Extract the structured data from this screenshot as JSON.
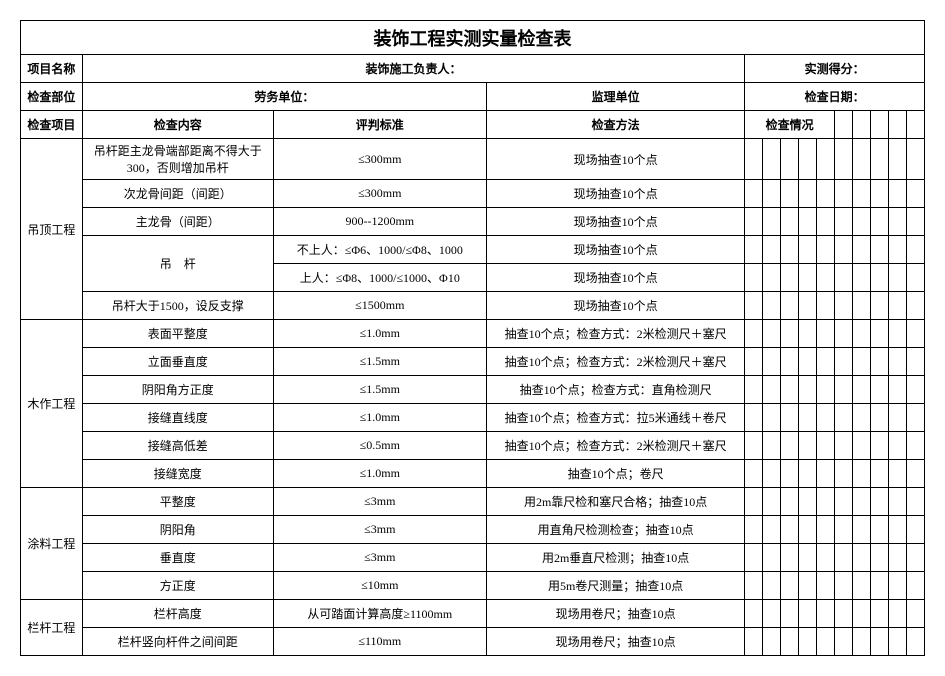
{
  "title": "装饰工程实测实量检查表",
  "meta": {
    "project_name_label": "项目名称",
    "construction_leader_label": "装饰施工负责人：",
    "actual_score_label": "实测得分：",
    "inspection_part_label": "检查部位",
    "labor_unit_label": "劳务单位：",
    "supervision_unit_label": "监理单位",
    "inspection_date_label": "检查日期："
  },
  "headers": {
    "category": "检查项目",
    "content": "检查内容",
    "standard": "评判标准",
    "method": "检查方法",
    "situation": "检查情况"
  },
  "sections": [
    {
      "name": "吊顶工程",
      "rows": [
        {
          "content": "吊杆距主龙骨端部距离不得大于300，否则增加吊杆",
          "content2": "",
          "standard": "≤300mm",
          "method": "现场抽查10个点"
        },
        {
          "content": "次龙骨间距（间距）",
          "content2": "",
          "standard": "≤300mm",
          "method": "现场抽查10个点"
        },
        {
          "content": "主龙骨（间距）",
          "content2": "",
          "standard": "900--1200mm",
          "method": "现场抽查10个点"
        },
        {
          "content": "吊　杆",
          "content2": "",
          "standard": "不上人：≤Φ6、1000/≤Φ8、1000",
          "method": "现场抽查10个点",
          "rowspan": 2,
          "multi_std": [
            "不上人：≤Φ6、1000/≤Φ8、1000",
            "上人：≤Φ8、1000/≤1000、Φ10"
          ],
          "multi_method": [
            "现场抽查10个点",
            "现场抽查10个点"
          ]
        },
        {
          "content": "吊杆大于1500，设反支撑",
          "content2": "",
          "standard": "≤1500mm",
          "method": "现场抽查10个点"
        }
      ]
    },
    {
      "name": "木作工程",
      "rows": [
        {
          "content": "表面平整度",
          "standard": "≤1.0mm",
          "method": "抽查10个点；检查方式：2米检测尺＋塞尺"
        },
        {
          "content": "立面垂直度",
          "standard": "≤1.5mm",
          "method": "抽查10个点；检查方式：2米检测尺＋塞尺"
        },
        {
          "content": "阴阳角方正度",
          "standard": "≤1.5mm",
          "method": "抽查10个点；检查方式：直角检测尺"
        },
        {
          "content": "接缝直线度",
          "standard": "≤1.0mm",
          "method": "抽查10个点；检查方式：拉5米通线＋卷尺"
        },
        {
          "content": "接缝高低差",
          "standard": "≤0.5mm",
          "method": "抽查10个点；检查方式：2米检测尺＋塞尺"
        },
        {
          "content": "接缝宽度",
          "standard": "≤1.0mm",
          "method": "抽查10个点；卷尺"
        }
      ]
    },
    {
      "name": "涂料工程",
      "rows": [
        {
          "content": "平整度",
          "standard": "≤3mm",
          "method": "用2m靠尺检和塞尺合格；抽查10点"
        },
        {
          "content": "阴阳角",
          "standard": "≤3mm",
          "method": "用直角尺检测检查；抽查10点"
        },
        {
          "content": "垂直度",
          "standard": "≤3mm",
          "method": "用2m垂直尺检测；抽查10点"
        },
        {
          "content": "方正度",
          "standard": "≤10mm",
          "method": "用5m卷尺测量；抽查10点"
        }
      ]
    },
    {
      "name": "栏杆工程",
      "rows": [
        {
          "content": "栏杆高度",
          "standard": "从可踏面计算高度≥1100mm",
          "method": "现场用卷尺；抽查10点"
        },
        {
          "content": "栏杆竖向杆件之间间距",
          "standard": "≤110mm",
          "method": "现场用卷尺；抽查10点"
        }
      ]
    }
  ]
}
